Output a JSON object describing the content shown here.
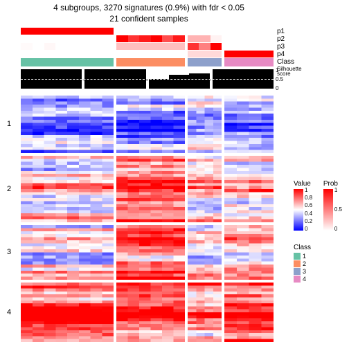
{
  "title_line1": "4 subgroups, 3270 signatures (0.9%) with fdr < 0.05",
  "title_line2": "21 confident samples",
  "subgroup_widths": [
    0.38,
    0.28,
    0.14,
    0.2
  ],
  "row_group_heights": [
    0.24,
    0.28,
    0.23,
    0.25
  ],
  "row_group_labels": [
    "1",
    "2",
    "3",
    "4"
  ],
  "anno_tracks": [
    {
      "label": "p1",
      "type": "prob",
      "values": [
        [
          1,
          1,
          1,
          1,
          1,
          1,
          1,
          1
        ],
        [
          0,
          0,
          0,
          0,
          0,
          0
        ],
        [
          0,
          0,
          0
        ],
        [
          0,
          0,
          0,
          0
        ]
      ]
    },
    {
      "label": "p2",
      "type": "prob",
      "values": [
        [
          0,
          0,
          0,
          0,
          0,
          0,
          0,
          0
        ],
        [
          1,
          0.8,
          0.9,
          1,
          0.7,
          0.9
        ],
        [
          0.3,
          0.3,
          0.05
        ],
        [
          0,
          0,
          0,
          0
        ]
      ]
    },
    {
      "label": "p3",
      "type": "prob",
      "values": [
        [
          0.02,
          0,
          0.03,
          0,
          0,
          0,
          0,
          0
        ],
        [
          0.25,
          0.25,
          0.25,
          0.25,
          0.25,
          0.25
        ],
        [
          0.8,
          0.5,
          1
        ],
        [
          0,
          0,
          0,
          0
        ]
      ]
    },
    {
      "label": "p4",
      "type": "prob",
      "values": [
        [
          0,
          0,
          0,
          0,
          0,
          0,
          0,
          0
        ],
        [
          0,
          0,
          0,
          0,
          0,
          0
        ],
        [
          0.15,
          0.15,
          0.15
        ],
        [
          1,
          1,
          1,
          1
        ]
      ]
    }
  ],
  "class_track": {
    "label": "Class",
    "colors": [
      "#66c2a5",
      "#fc8d62",
      "#8da0cb",
      "#e78ac3"
    ]
  },
  "silhouette": {
    "label_main": "Silhouette",
    "label_sub": "score",
    "ticks": [
      "1",
      "0.5",
      "0"
    ],
    "bg": "#000000",
    "bar_color": "#ffffff",
    "values": [
      [
        0,
        0,
        0,
        0,
        0,
        0,
        0,
        0
      ],
      [
        0,
        0,
        0,
        0,
        0,
        0
      ],
      [
        0.5,
        0.3,
        0.2
      ],
      [
        0,
        0,
        0,
        0
      ]
    ]
  },
  "heatmap": {
    "palette_low": "#0000ff",
    "palette_mid": "#ffffff",
    "palette_high": "#ff0000",
    "group_means": [
      [
        0.22,
        0.22,
        0.35,
        0.3
      ],
      [
        0.55,
        0.82,
        0.6,
        0.6
      ],
      [
        0.52,
        0.8,
        0.5,
        0.55
      ],
      [
        0.85,
        0.88,
        0.75,
        0.92
      ]
    ],
    "group_spread": 0.35,
    "cols_per_unit": 10,
    "rows_per_unit": 40
  },
  "legends": {
    "value": {
      "title": "Value",
      "ticks": [
        "1",
        "0.8",
        "0.6",
        "0.4",
        "0.2",
        "0"
      ],
      "gradient": [
        "#ff0000",
        "#ffffff",
        "#0000ff"
      ]
    },
    "prob": {
      "title": "Prob",
      "ticks": [
        "1",
        "0.5",
        "0"
      ],
      "gradient": [
        "#ff0000",
        "#ffffff"
      ]
    },
    "class": {
      "title": "Class",
      "items": [
        {
          "label": "1",
          "color": "#66c2a5"
        },
        {
          "label": "2",
          "color": "#fc8d62"
        },
        {
          "label": "3",
          "color": "#8da0cb"
        },
        {
          "label": "4",
          "color": "#e78ac3"
        }
      ]
    }
  }
}
